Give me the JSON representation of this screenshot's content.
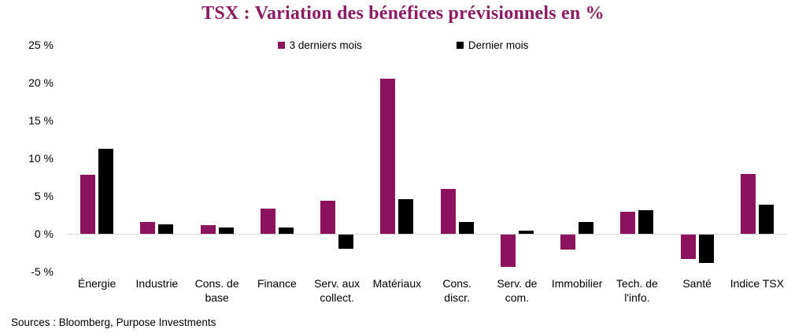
{
  "chart_data": {
    "type": "bar",
    "title": "TSX : Variation des bénéfices prévisionnels en %",
    "categories": [
      "Énergie",
      "Industrie",
      "Cons. de\nbase",
      "Finance",
      "Serv. aux\ncollect.",
      "Matériaux",
      "Cons.\ndiscr.",
      "Serv. de\ncom.",
      "Immobilier",
      "Tech. de\nl'info.",
      "Santé",
      "Indice TSX"
    ],
    "series": [
      {
        "name": "3 derniers mois",
        "color": "#8C125E",
        "values": [
          7.8,
          1.6,
          1.1,
          3.3,
          4.4,
          20.5,
          5.9,
          -4.3,
          -2.0,
          2.9,
          -3.2,
          7.9
        ]
      },
      {
        "name": "Dernier mois",
        "color": "#000000",
        "values": [
          11.3,
          1.2,
          0.8,
          0.8,
          -1.9,
          4.6,
          1.6,
          0.4,
          1.6,
          3.1,
          -3.7,
          3.9
        ]
      }
    ],
    "ylabel": "",
    "xlabel": "",
    "ylim": [
      -5,
      25
    ],
    "yticks": [
      25,
      20,
      15,
      10,
      5,
      0,
      -5
    ],
    "ytick_suffix": " %",
    "grid": false,
    "legend_position": "top-center",
    "title_color": "#8D1A62",
    "zero_line_color": "#D9D9D9",
    "source": "Sources : Bloomberg, Purpose Investments"
  }
}
